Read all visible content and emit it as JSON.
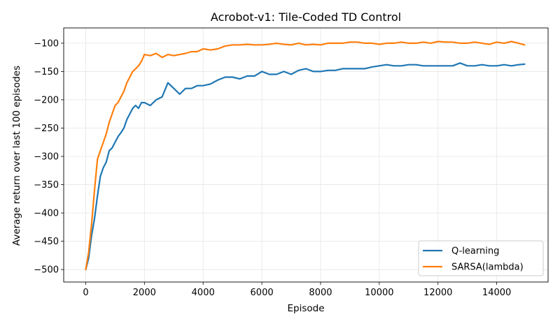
{
  "chart_data": {
    "type": "line",
    "title": "Acrobot-v1: Tile-Coded TD Control",
    "xlabel": "Episode",
    "ylabel": "Average return over last 100 episodes",
    "xlim": [
      -750,
      15750
    ],
    "ylim": [
      -522,
      -73
    ],
    "xticks": [
      0,
      2000,
      4000,
      6000,
      8000,
      10000,
      12000,
      14000
    ],
    "yticks": [
      -500,
      -450,
      -400,
      -350,
      -300,
      -250,
      -200,
      -150,
      -100
    ],
    "grid": true,
    "legend_position": "lower-right",
    "series": [
      {
        "name": "Q-learning",
        "color": "#1f77b4",
        "x": [
          0,
          100,
          200,
          300,
          400,
          500,
          600,
          700,
          800,
          900,
          1000,
          1100,
          1200,
          1300,
          1400,
          1500,
          1600,
          1700,
          1800,
          1900,
          2000,
          2200,
          2400,
          2600,
          2800,
          3000,
          3200,
          3400,
          3600,
          3800,
          4000,
          4250,
          4500,
          4750,
          5000,
          5250,
          5500,
          5750,
          6000,
          6250,
          6500,
          6750,
          7000,
          7250,
          7500,
          7750,
          8000,
          8250,
          8500,
          8750,
          9000,
          9250,
          9500,
          9750,
          10000,
          10250,
          10500,
          10750,
          11000,
          11250,
          11500,
          11750,
          12000,
          12250,
          12500,
          12750,
          13000,
          13250,
          13500,
          13750,
          14000,
          14250,
          14500,
          14750,
          14950
        ],
        "y": [
          -500,
          -480,
          -440,
          -410,
          -370,
          -335,
          -320,
          -310,
          -290,
          -285,
          -275,
          -265,
          -258,
          -250,
          -235,
          -225,
          -215,
          -210,
          -215,
          -205,
          -205,
          -210,
          -200,
          -195,
          -170,
          -180,
          -190,
          -180,
          -180,
          -175,
          -175,
          -172,
          -165,
          -160,
          -160,
          -163,
          -158,
          -158,
          -150,
          -155,
          -155,
          -150,
          -155,
          -148,
          -145,
          -150,
          -150,
          -148,
          -148,
          -145,
          -145,
          -145,
          -145,
          -142,
          -140,
          -138,
          -140,
          -140,
          -138,
          -138,
          -140,
          -140,
          -140,
          -140,
          -140,
          -135,
          -140,
          -140,
          -138,
          -140,
          -140,
          -138,
          -140,
          -138,
          -137
        ]
      },
      {
        "name": "SARSA(lambda)",
        "color": "#ff7f0e",
        "x": [
          0,
          100,
          200,
          300,
          400,
          500,
          600,
          700,
          800,
          900,
          1000,
          1100,
          1200,
          1300,
          1400,
          1500,
          1600,
          1700,
          1800,
          1900,
          2000,
          2200,
          2400,
          2600,
          2800,
          3000,
          3200,
          3400,
          3600,
          3800,
          4000,
          4250,
          4500,
          4750,
          5000,
          5250,
          5500,
          5750,
          6000,
          6250,
          6500,
          6750,
          7000,
          7250,
          7500,
          7750,
          8000,
          8250,
          8500,
          8750,
          9000,
          9250,
          9500,
          9750,
          10000,
          10250,
          10500,
          10750,
          11000,
          11250,
          11500,
          11750,
          12000,
          12250,
          12500,
          12750,
          13000,
          13250,
          13500,
          13750,
          14000,
          14250,
          14500,
          14750,
          14950
        ],
        "y": [
          -500,
          -470,
          -420,
          -360,
          -305,
          -290,
          -275,
          -260,
          -240,
          -225,
          -210,
          -205,
          -195,
          -185,
          -170,
          -160,
          -150,
          -145,
          -140,
          -132,
          -120,
          -122,
          -118,
          -125,
          -120,
          -122,
          -120,
          -118,
          -115,
          -115,
          -110,
          -112,
          -110,
          -105,
          -103,
          -103,
          -102,
          -103,
          -103,
          -102,
          -100,
          -102,
          -103,
          -100,
          -103,
          -102,
          -103,
          -100,
          -100,
          -100,
          -98,
          -98,
          -100,
          -100,
          -102,
          -100,
          -100,
          -98,
          -100,
          -100,
          -98,
          -100,
          -97,
          -98,
          -98,
          -100,
          -100,
          -98,
          -100,
          -102,
          -98,
          -100,
          -97,
          -100,
          -103
        ]
      }
    ]
  }
}
